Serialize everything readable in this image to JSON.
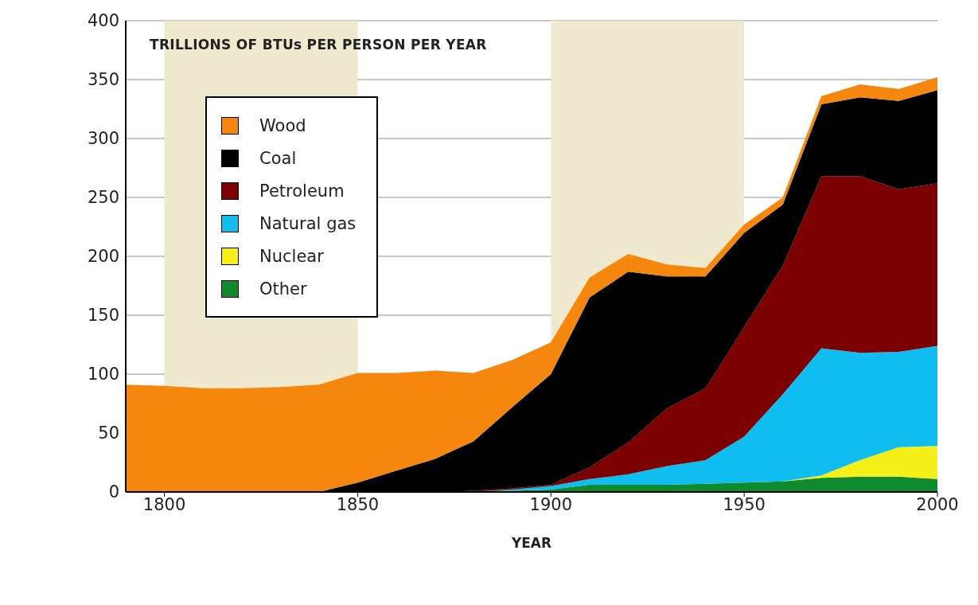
{
  "chart_data": {
    "type": "area",
    "stacked": true,
    "ylabel": "TRILLIONS OF BTUs PER PERSON PER YEAR",
    "xlabel": "YEAR",
    "x": [
      1790,
      1800,
      1810,
      1820,
      1830,
      1840,
      1850,
      1860,
      1870,
      1880,
      1890,
      1900,
      1910,
      1920,
      1930,
      1940,
      1950,
      1960,
      1970,
      1980,
      1990,
      2000
    ],
    "series": [
      {
        "name": "Other",
        "color": "#118a2e",
        "values": [
          0,
          0,
          0,
          0,
          0,
          0,
          0,
          0,
          0,
          0,
          1,
          2,
          6,
          6,
          6,
          7,
          8,
          9,
          12,
          13,
          13,
          11
        ]
      },
      {
        "name": "Nuclear",
        "color": "#f5ef1a",
        "values": [
          0,
          0,
          0,
          0,
          0,
          0,
          0,
          0,
          0,
          0,
          0,
          0,
          0,
          0,
          0,
          0,
          0,
          0,
          2,
          14,
          25,
          28
        ]
      },
      {
        "name": "Natural gas",
        "color": "#10bdf0",
        "values": [
          0,
          0,
          0,
          0,
          0,
          0,
          0,
          0,
          0,
          0,
          1,
          3,
          5,
          9,
          16,
          20,
          39,
          74,
          108,
          91,
          81,
          85
        ]
      },
      {
        "name": "Petroleum",
        "color": "#7d0000",
        "values": [
          0,
          0,
          0,
          0,
          0,
          0,
          0,
          0,
          0,
          1,
          1,
          1,
          10,
          27,
          49,
          61,
          93,
          109,
          146,
          150,
          138,
          138
        ]
      },
      {
        "name": "Coal",
        "color": "#000000",
        "values": [
          0,
          0,
          0,
          0,
          0,
          0,
          8,
          18,
          28,
          42,
          69,
          94,
          144,
          145,
          112,
          95,
          80,
          52,
          61,
          67,
          75,
          79
        ]
      },
      {
        "name": "Wood",
        "color": "#f5870f",
        "values": [
          91,
          90,
          88,
          88,
          89,
          91,
          93,
          83,
          75,
          58,
          40,
          27,
          17,
          15,
          10,
          7,
          7,
          6,
          7,
          11,
          10,
          11
        ]
      }
    ],
    "xlim": [
      1790,
      2000
    ],
    "xticks": [
      1800,
      1850,
      1900,
      1950,
      2000
    ],
    "ylim": [
      0,
      400
    ],
    "yticks": [
      0,
      50,
      100,
      150,
      200,
      250,
      300,
      350,
      400
    ],
    "grid": "y",
    "legend": "top left",
    "bands": [
      {
        "axis": "x",
        "from": 1800,
        "to": 1850,
        "color": "#efe9cf"
      },
      {
        "axis": "x",
        "from": 1900,
        "to": 1950,
        "color": "#efe9cf"
      }
    ]
  }
}
